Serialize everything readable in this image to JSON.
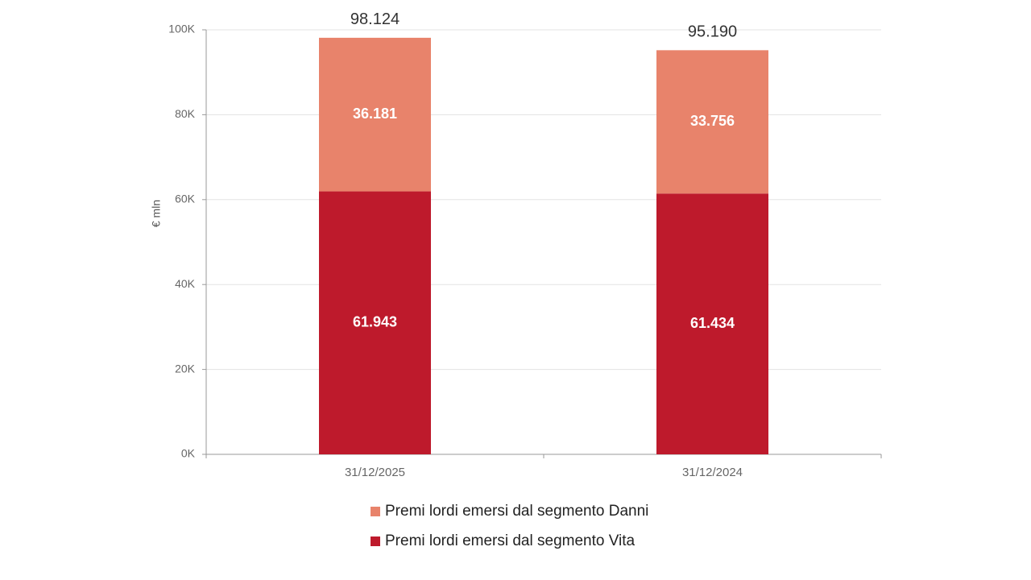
{
  "chart_data": {
    "type": "stacked_bar",
    "categories": [
      "31/12/2025",
      "31/12/2024"
    ],
    "series": [
      {
        "name": "Premi lordi emersi dal segmento Vita",
        "color": "#be1a2c",
        "values": [
          61943,
          61434
        ],
        "value_labels": [
          "61.943",
          "61.434"
        ]
      },
      {
        "name": "Premi lordi emersi dal segmento Danni",
        "color": "#e8836b",
        "values": [
          36181,
          33756
        ],
        "value_labels": [
          "36.181",
          "33.756"
        ]
      }
    ],
    "totals": {
      "values": [
        98124,
        95190
      ],
      "value_labels": [
        "98.124",
        "95.190"
      ]
    },
    "y_label": "€ mln",
    "ylim": [
      0,
      100000
    ],
    "yticks": [
      {
        "value": 0,
        "label": "0K"
      },
      {
        "value": 20000,
        "label": "20K"
      },
      {
        "value": 40000,
        "label": "40K"
      },
      {
        "value": 60000,
        "label": "60K"
      },
      {
        "value": 80000,
        "label": "80K"
      },
      {
        "value": 100000,
        "label": "100K"
      }
    ],
    "grid": true
  }
}
